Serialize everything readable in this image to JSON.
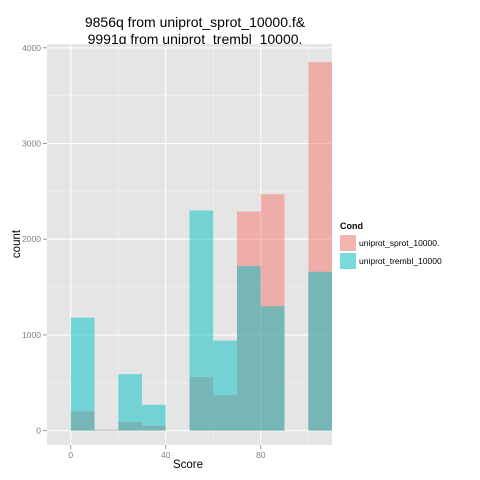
{
  "chart_data": {
    "type": "histogram",
    "title_lines": [
      "9856q from  uniprot_sprot_10000.f&",
      "9991q from uniprot_trembl_10000."
    ],
    "xlabel": "Score",
    "ylabel": "count",
    "xlim": [
      -10,
      110
    ],
    "ylim": [
      -150,
      4040
    ],
    "xticks": [
      0,
      40,
      80
    ],
    "yticks": [
      0,
      1000,
      2000,
      3000,
      4000
    ],
    "bin_width": 10,
    "bin_starts": [
      0,
      10,
      20,
      30,
      50,
      60,
      70,
      80,
      100
    ],
    "legend": {
      "title": "Cond",
      "position": "right"
    },
    "series": [
      {
        "name": "uniprot_sprot_10000.",
        "color": "#F8766D",
        "values": [
          200,
          10,
          90,
          50,
          560,
          370,
          2290,
          2470,
          3850
        ]
      },
      {
        "name": "uniprot_trembl_10000",
        "color": "#00BFC4",
        "values": [
          1180,
          5,
          590,
          270,
          2300,
          940,
          1720,
          1300,
          1660
        ]
      }
    ],
    "panel_background": "#E5E5E5",
    "grid": true
  }
}
